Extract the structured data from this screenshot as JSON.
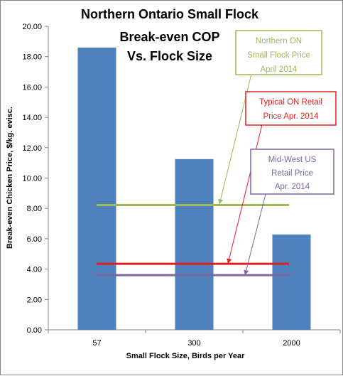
{
  "chart_data": {
    "type": "bar",
    "title_lines": [
      "Northern Ontario Small Flock",
      "Break-even COP",
      "Vs. Flock Size"
    ],
    "xlabel": "Small Flock Size, Birds per Year",
    "ylabel": "Break-even Chicken Price, $/kg. evisc.",
    "categories": [
      "57",
      "300",
      "2000"
    ],
    "values": [
      18.6,
      11.25,
      6.28
    ],
    "bar_color": "#4F81BD",
    "ylim": [
      0,
      20
    ],
    "yticks": [
      "0.00",
      "2.00",
      "4.00",
      "6.00",
      "8.00",
      "10.00",
      "12.00",
      "14.00",
      "16.00",
      "18.00",
      "20.00"
    ],
    "grid": false,
    "reference_lines": [
      {
        "value": 8.22,
        "color": "#9BBB59",
        "label_lines": [
          "Northern ON",
          "Small Flock Price",
          "April 2014"
        ]
      },
      {
        "value": 4.35,
        "color": "#E02020",
        "label_lines": [
          "Typical ON Retail",
          "Price Apr. 2014"
        ]
      },
      {
        "value": 3.6,
        "color": "#8064A2",
        "label_lines": [
          "Mid-West US",
          "Retail Price",
          "Apr. 2014"
        ]
      }
    ]
  }
}
